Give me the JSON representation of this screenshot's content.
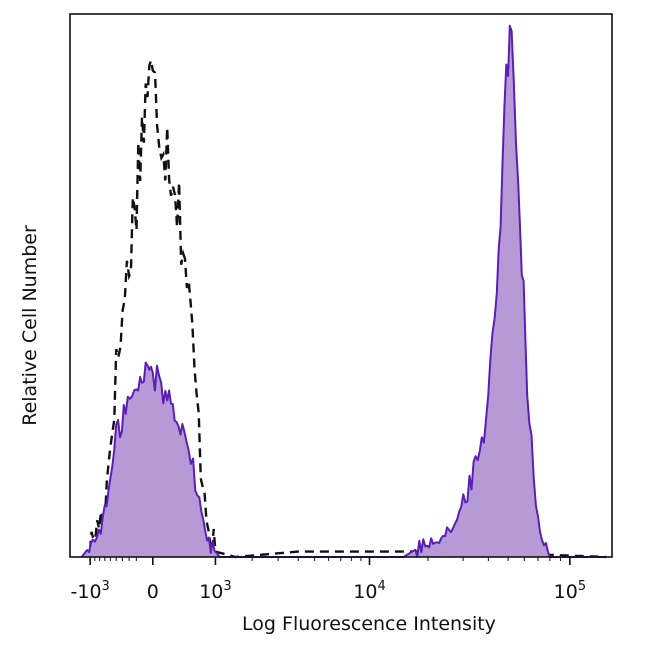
{
  "chart_data": {
    "type": "area",
    "xlabel": "Log Fluorescence Intensity",
    "ylabel": "Relative Cell Number",
    "x_scale": "biexponential",
    "xlim": [
      -1500,
      160000
    ],
    "ylim": [
      0,
      1
    ],
    "grid": false,
    "legend": "none",
    "x_ticks": [
      {
        "value": -1000,
        "base": "-10",
        "exp": "3"
      },
      {
        "value": 0,
        "base": "0",
        "exp": ""
      },
      {
        "value": 1000,
        "base": "10",
        "exp": "3"
      },
      {
        "value": 10000,
        "base": "10",
        "exp": "4"
      },
      {
        "value": 100000,
        "base": "10",
        "exp": "5"
      }
    ],
    "series": [
      {
        "style": "dashed",
        "color": "#111111",
        "points": [
          [
            -1100,
            0.0
          ],
          [
            -700,
            0.09
          ],
          [
            -500,
            0.34
          ],
          [
            -300,
            0.55
          ],
          [
            -150,
            0.75
          ],
          [
            -60,
            0.88
          ],
          [
            0,
            0.86
          ],
          [
            100,
            0.8
          ],
          [
            250,
            0.72
          ],
          [
            400,
            0.58
          ],
          [
            550,
            0.4
          ],
          [
            700,
            0.18
          ],
          [
            850,
            0.06
          ],
          [
            1000,
            0.01
          ],
          [
            1500,
            0.0
          ],
          [
            4000,
            0.01
          ],
          [
            30000,
            0.01
          ],
          [
            150000,
            0.0
          ]
        ]
      },
      {
        "style": "filled",
        "color": "#5b1fb5",
        "fill": "#b59ad6",
        "points": [
          [
            -1200,
            0.0
          ],
          [
            -900,
            0.03
          ],
          [
            -700,
            0.08
          ],
          [
            -600,
            0.14
          ],
          [
            -500,
            0.22
          ],
          [
            -350,
            0.28
          ],
          [
            -200,
            0.3
          ],
          [
            -60,
            0.35
          ],
          [
            0,
            0.34
          ],
          [
            150,
            0.3
          ],
          [
            300,
            0.27
          ],
          [
            450,
            0.22
          ],
          [
            600,
            0.14
          ],
          [
            750,
            0.06
          ],
          [
            900,
            0.02
          ],
          [
            1100,
            0.0
          ],
          [
            15000,
            0.0
          ],
          [
            28000,
            0.06
          ],
          [
            38000,
            0.22
          ],
          [
            44000,
            0.5
          ],
          [
            49000,
            0.88
          ],
          [
            52000,
            0.96
          ],
          [
            56000,
            0.72
          ],
          [
            62000,
            0.32
          ],
          [
            70000,
            0.06
          ],
          [
            80000,
            0.0
          ],
          [
            150000,
            0.0
          ]
        ]
      }
    ]
  }
}
